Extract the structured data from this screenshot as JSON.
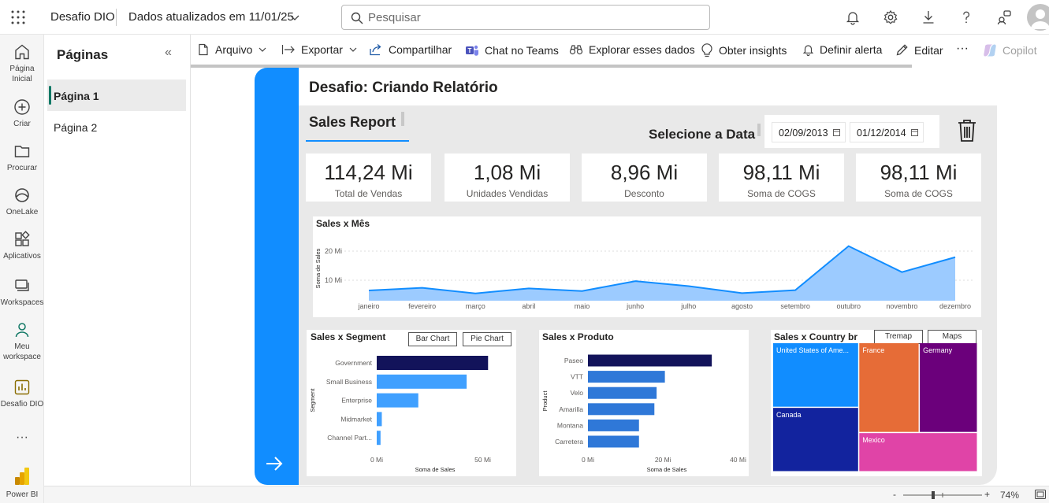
{
  "topbar": {
    "app_name": "Desafio DIO",
    "updated_text": "Dados atualizados em 11/01/25",
    "search_placeholder": "Pesquisar"
  },
  "leftnav": [
    {
      "label1": "Página",
      "label2": "Inicial"
    },
    {
      "label1": "Criar",
      "label2": ""
    },
    {
      "label1": "Procurar",
      "label2": ""
    },
    {
      "label1": "OneLake",
      "label2": ""
    },
    {
      "label1": "Aplicativos",
      "label2": ""
    },
    {
      "label1": "Workspaces",
      "label2": ""
    },
    {
      "label1": "Meu",
      "label2": "workspace"
    },
    {
      "label1": "Desafio DIO",
      "label2": ""
    },
    {
      "label1": "Power BI",
      "label2": ""
    }
  ],
  "pages_pane": {
    "title": "Páginas",
    "items": [
      "Página 1",
      "Página 2"
    ]
  },
  "toolbar": {
    "arquivo": "Arquivo",
    "exportar": "Exportar",
    "compartilhar": "Compartilhar",
    "chat_teams": "Chat no Teams",
    "explorar": "Explorar esses dados",
    "insights": "Obter insights",
    "alerta": "Definir alerta",
    "editar": "Editar",
    "copilot": "Copilot"
  },
  "report": {
    "title": "Desafio: Criando Relatório",
    "subtitle": "Sales Report",
    "date_label": "Selecione a Data",
    "date_start": "02/09/2013",
    "date_end": "01/12/2014",
    "cards": [
      {
        "value": "114,24 Mi",
        "label": "Total de Vendas"
      },
      {
        "value": "1,08 Mi",
        "label": "Unidades Vendidas"
      },
      {
        "value": "8,96 Mi",
        "label": "Desconto"
      },
      {
        "value": "98,11 Mi",
        "label": "Soma de COGS"
      },
      {
        "value": "98,11 Mi",
        "label": "Soma de COGS"
      }
    ],
    "segment_buttons": [
      "Bar Chart",
      "Pie Chart"
    ],
    "country_buttons": [
      "Tremap",
      "Maps"
    ]
  },
  "chart_data": [
    {
      "type": "area",
      "title": "Sales x Mês",
      "ylabel": "Soma de Sales",
      "xlabel": "",
      "categories": [
        "janeiro",
        "fevereiro",
        "março",
        "abril",
        "maio",
        "junho",
        "julho",
        "agosto",
        "setembro",
        "outubro",
        "novembro",
        "dezembro"
      ],
      "values": [
        6.5,
        7.4,
        5.5,
        7.2,
        6.3,
        9.7,
        8.0,
        5.6,
        6.6,
        21.7,
        12.8,
        17.9
      ],
      "yticks": [
        10,
        20
      ],
      "ytick_labels": [
        "10 Mi",
        "20 Mi"
      ],
      "ylim": [
        3,
        27
      ],
      "color": "#118dff",
      "fill": "#9ccbff"
    },
    {
      "type": "bar",
      "title": "Sales x Segment",
      "orientation": "horizontal",
      "ylabel": "Segment",
      "xlabel": "Soma de Sales",
      "categories": [
        "Government",
        "Small Business",
        "Enterprise",
        "Midmarket",
        "Channel Part..."
      ],
      "values": [
        52.5,
        42.4,
        19.6,
        2.4,
        1.8
      ],
      "xticks": [
        0,
        50
      ],
      "xtick_labels": [
        "0 Mi",
        "50 Mi"
      ],
      "xlim": [
        0,
        55
      ],
      "colors": [
        "#12135a",
        "#40a0ff",
        "#40a0ff",
        "#40a0ff",
        "#40a0ff"
      ]
    },
    {
      "type": "bar",
      "title": "Sales x Produto",
      "orientation": "horizontal",
      "ylabel": "Product",
      "xlabel": "Soma de Sales",
      "categories": [
        "Paseo",
        "VTT",
        "Velo",
        "Amarilla",
        "Montana",
        "Carretera"
      ],
      "values": [
        33.0,
        20.5,
        18.3,
        17.7,
        13.6,
        13.6
      ],
      "xticks": [
        0,
        20,
        40
      ],
      "xtick_labels": [
        "0 Mi",
        "20 Mi",
        "40 Mi"
      ],
      "xlim": [
        0,
        42
      ],
      "colors": [
        "#12135a",
        "#2f78d8",
        "#2f78d8",
        "#2f78d8",
        "#2f78d8",
        "#2f78d8"
      ]
    },
    {
      "type": "treemap",
      "title": "Sales x Country br",
      "categories": [
        "United States of Ame...",
        "Canada",
        "France",
        "Germany",
        "Mexico"
      ],
      "values": [
        25.0,
        24.9,
        24.4,
        23.5,
        20.9
      ],
      "colors": [
        "#118dff",
        "#12239e",
        "#e66c37",
        "#6b007b",
        "#e044a7"
      ]
    }
  ],
  "statusbar": {
    "zoom_minus": "-",
    "zoom_plus": "+",
    "zoom": "74%",
    "zoom_fraction": 0.38
  }
}
